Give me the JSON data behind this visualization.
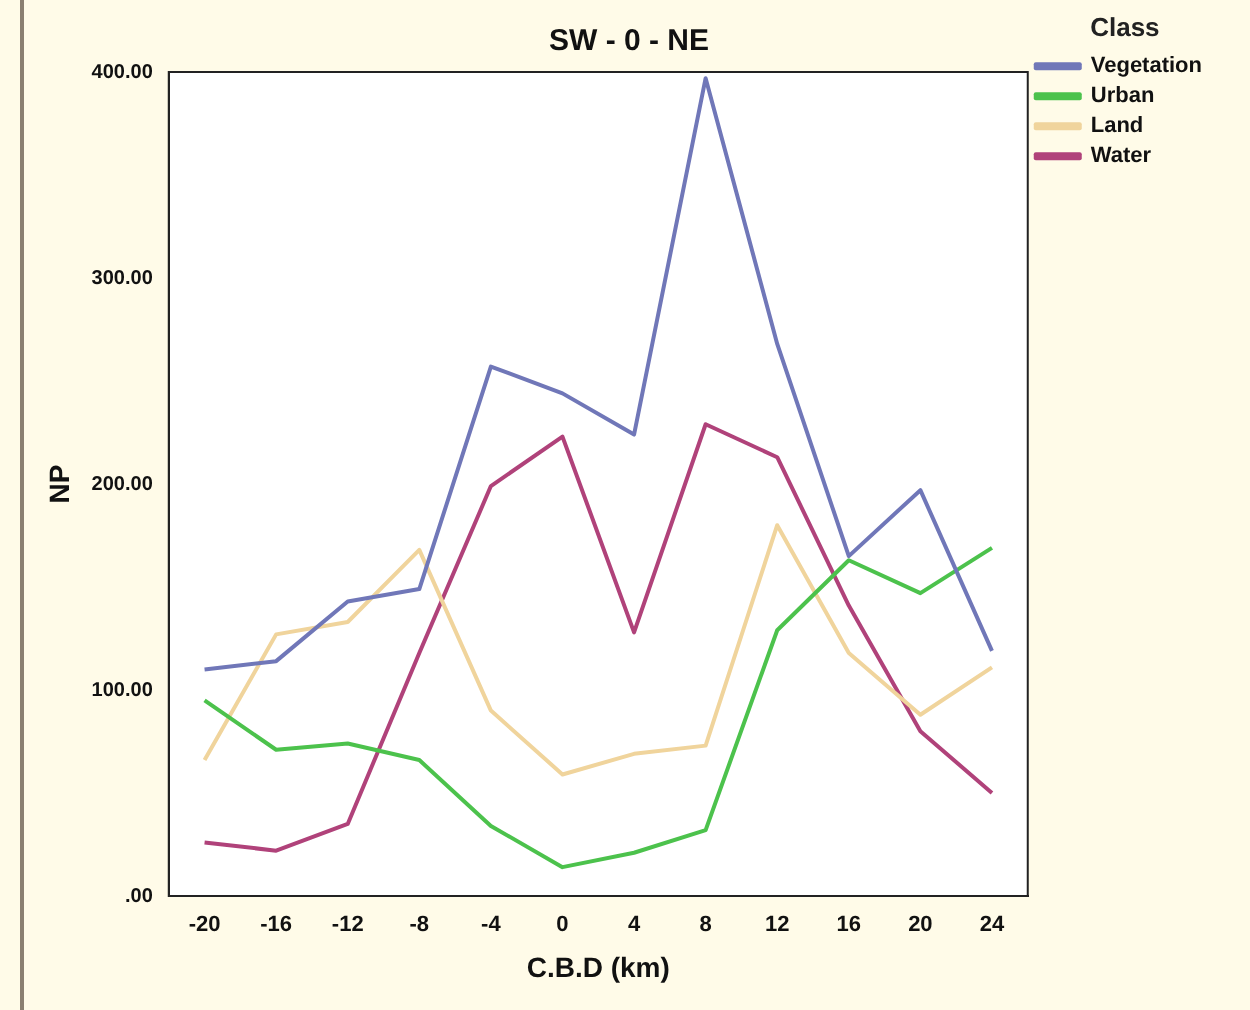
{
  "chart_data": {
    "type": "line",
    "title": "SW - 0 - NE",
    "xlabel": "C.B.D (km)",
    "ylabel": "NP",
    "legend_title": "Class",
    "legend": "right",
    "grid": false,
    "marker": "none",
    "line_style": "solid",
    "categories": [
      "-20",
      "-16",
      "-12",
      "-8",
      "-4",
      "0",
      "4",
      "8",
      "12",
      "16",
      "20",
      "24"
    ],
    "ylim": [
      0,
      400
    ],
    "yticks": [
      {
        "value": 0,
        "label": ".00"
      },
      {
        "value": 100,
        "label": "100.00"
      },
      {
        "value": 200,
        "label": "200.00"
      },
      {
        "value": 300,
        "label": "300.00"
      },
      {
        "value": 400,
        "label": "400.00"
      }
    ],
    "series": [
      {
        "name": "Vegetation",
        "color": "#7077b8",
        "values": [
          110,
          114,
          143,
          149,
          257,
          244,
          224,
          397,
          268,
          165,
          197,
          119
        ]
      },
      {
        "name": "Urban",
        "color": "#4cc24c",
        "values": [
          95,
          71,
          74,
          66,
          34,
          14,
          21,
          32,
          129,
          163,
          147,
          169
        ]
      },
      {
        "name": "Land",
        "color": "#f0d49c",
        "values": [
          66,
          127,
          133,
          168,
          90,
          59,
          69,
          73,
          180,
          118,
          88,
          111
        ]
      },
      {
        "name": "Water",
        "color": "#b0427a",
        "values": [
          26,
          22,
          35,
          118,
          199,
          223,
          128,
          229,
          213,
          141,
          80,
          50
        ]
      }
    ]
  }
}
